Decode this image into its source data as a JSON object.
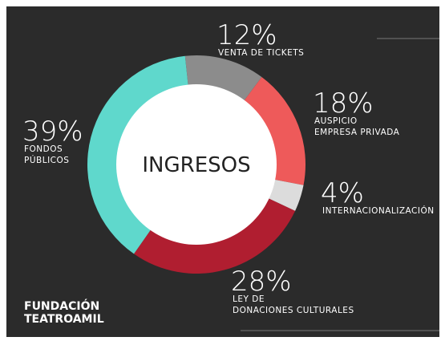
{
  "chart_data": {
    "type": "donut",
    "center_label": "INGRESOS",
    "categories": [
      [
        "VENTA DE TICKETS"
      ],
      [
        "AUSPICIO",
        "EMPRESA PRIVADA"
      ],
      [
        "INTERNACIONALIZACIÓN"
      ],
      [
        "LEY DE",
        "DONACIONES CULTURALES"
      ],
      [
        "FONDOS",
        "PÚBLICOS"
      ]
    ],
    "values": [
      12,
      18,
      4,
      28,
      39
    ],
    "value_labels": [
      "12%",
      "18%",
      "4%",
      "28%",
      "39%"
    ],
    "colors": [
      "#8c8c8c",
      "#ee5a5a",
      "#dcdcdc",
      "#b01e30",
      "#5fd8cc"
    ]
  },
  "logo": [
    "FUNDACIÓN",
    "TEATROAMIL"
  ]
}
